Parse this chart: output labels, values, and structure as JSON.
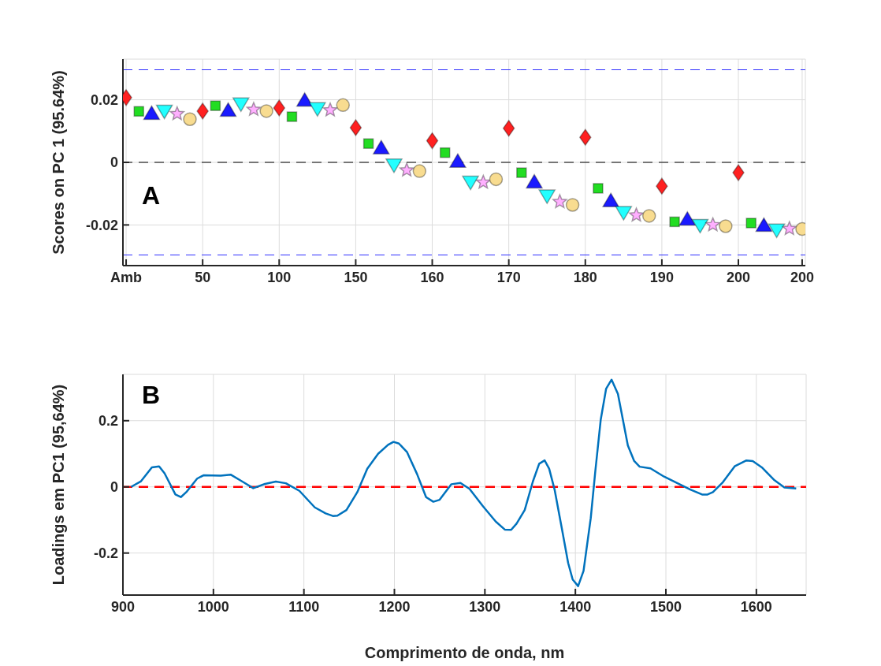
{
  "chart_data": [
    {
      "type": "scatter",
      "ylabel": "Scores on PC 1 (95.64%)",
      "annotations": [
        "A"
      ],
      "categories": [
        "Amb",
        null,
        null,
        null,
        null,
        null,
        "50",
        null,
        null,
        null,
        null,
        null,
        "100",
        null,
        null,
        null,
        null,
        null,
        "150",
        null,
        null,
        null,
        null,
        null,
        "160",
        null,
        null,
        null,
        null,
        null,
        "170",
        null,
        null,
        null,
        null,
        null,
        "180",
        null,
        null,
        null,
        null,
        null,
        "190",
        null,
        null,
        null,
        null,
        null,
        "200",
        null,
        null,
        null,
        null,
        "200"
      ],
      "ylim": [
        -0.033,
        0.033
      ],
      "yticks": [
        -0.02,
        0,
        0.02
      ],
      "grid": true,
      "ref_lines": [
        {
          "axis": "y",
          "value": 0,
          "color": "#000000",
          "line_style": "dashed"
        },
        {
          "axis": "y",
          "value": 0.0296,
          "color": "#3030ff",
          "line_style": "dashed"
        },
        {
          "axis": "y",
          "value": -0.0296,
          "color": "#3030ff",
          "line_style": "dashed"
        }
      ],
      "series": [
        {
          "color": "#ff2020",
          "marker": "diamond",
          "values": [
            0.0207,
            null,
            null,
            null,
            null,
            null,
            0.0164,
            null,
            null,
            null,
            null,
            null,
            0.0174,
            null,
            null,
            null,
            null,
            null,
            0.0111,
            null,
            null,
            null,
            null,
            null,
            0.0069,
            null,
            null,
            null,
            null,
            null,
            0.0109,
            null,
            null,
            null,
            null,
            null,
            0.008,
            null,
            null,
            null,
            null,
            null,
            -0.0076,
            null,
            null,
            null,
            null,
            null,
            -0.0033,
            null,
            null,
            null,
            null,
            null
          ]
        },
        {
          "color": "#22dd22",
          "marker": "square",
          "values": [
            null,
            0.0163,
            null,
            null,
            null,
            null,
            null,
            0.0181,
            null,
            null,
            null,
            null,
            null,
            0.0146,
            null,
            null,
            null,
            null,
            null,
            0.006,
            null,
            null,
            null,
            null,
            null,
            0.0031,
            null,
            null,
            null,
            null,
            null,
            -0.0033,
            null,
            null,
            null,
            null,
            null,
            -0.0083,
            null,
            null,
            null,
            null,
            null,
            -0.019,
            null,
            null,
            null,
            null,
            null,
            -0.0194,
            null,
            null,
            null,
            null
          ]
        },
        {
          "color": "#1a1aff",
          "marker": "triangle",
          "values": [
            null,
            null,
            0.0155,
            null,
            null,
            null,
            null,
            null,
            0.0165,
            null,
            null,
            null,
            null,
            null,
            0.0197,
            null,
            null,
            null,
            null,
            null,
            0.0045,
            null,
            null,
            null,
            null,
            null,
            0.0002,
            null,
            null,
            null,
            null,
            null,
            -0.0064,
            null,
            null,
            null,
            null,
            null,
            -0.0124,
            null,
            null,
            null,
            null,
            null,
            -0.0183,
            null,
            null,
            null,
            null,
            null,
            -0.0203,
            null,
            null,
            null
          ]
        },
        {
          "color": "#22ffff",
          "marker": "triangle-down",
          "values": [
            null,
            null,
            null,
            0.0165,
            null,
            null,
            null,
            null,
            null,
            0.0188,
            null,
            null,
            null,
            null,
            null,
            0.0173,
            null,
            null,
            null,
            null,
            null,
            -0.0007,
            null,
            null,
            null,
            null,
            null,
            -0.0062,
            null,
            null,
            null,
            null,
            null,
            -0.0106,
            null,
            null,
            null,
            null,
            null,
            -0.0159,
            null,
            null,
            null,
            null,
            null,
            -0.02,
            null,
            null,
            null,
            null,
            null,
            -0.0215,
            null,
            null
          ]
        },
        {
          "color": "#ffb0ff",
          "marker": "star",
          "values": [
            null,
            null,
            null,
            null,
            0.0155,
            null,
            null,
            null,
            null,
            null,
            0.0169,
            null,
            null,
            null,
            null,
            null,
            0.0167,
            null,
            null,
            null,
            null,
            null,
            -0.0025,
            null,
            null,
            null,
            null,
            null,
            -0.0064,
            null,
            null,
            null,
            null,
            null,
            -0.0126,
            null,
            null,
            null,
            null,
            null,
            -0.0169,
            null,
            null,
            null,
            null,
            null,
            -0.02,
            null,
            null,
            null,
            null,
            null,
            -0.0212,
            null
          ]
        },
        {
          "color": "#f8dc90",
          "marker": "circle",
          "values": [
            null,
            null,
            null,
            null,
            null,
            0.0138,
            null,
            null,
            null,
            null,
            null,
            0.0164,
            null,
            null,
            null,
            null,
            null,
            0.0183,
            null,
            null,
            null,
            null,
            null,
            -0.0028,
            null,
            null,
            null,
            null,
            null,
            -0.0054,
            null,
            null,
            null,
            null,
            null,
            -0.0136,
            null,
            null,
            null,
            null,
            null,
            -0.0171,
            null,
            null,
            null,
            null,
            null,
            -0.0204,
            null,
            null,
            null,
            null,
            null,
            -0.0213
          ]
        }
      ]
    },
    {
      "type": "line",
      "xlabel": "Comprimento de onda, nm",
      "ylabel": "Loadings em PC1 (95,64%)",
      "annotations": [
        "B"
      ],
      "xlim": [
        900,
        1655
      ],
      "xticks": [
        900,
        1000,
        1100,
        1200,
        1300,
        1400,
        1500,
        1600
      ],
      "ylim": [
        -0.327,
        0.34
      ],
      "yticks": [
        -0.2,
        0,
        0.2
      ],
      "grid": true,
      "ref_lines": [
        {
          "axis": "y",
          "value": 0,
          "color": "#ff0000",
          "line_style": "dashed"
        }
      ],
      "series": [
        {
          "color": "#0072bd",
          "x": [
            909,
            920,
            932,
            940,
            946,
            958,
            964,
            970,
            982,
            989,
            1008,
            1019,
            1032,
            1044,
            1057,
            1069,
            1080,
            1095,
            1112,
            1124,
            1132,
            1137,
            1147,
            1159,
            1170,
            1182,
            1193,
            1199,
            1205,
            1214,
            1225,
            1235,
            1243,
            1250,
            1263,
            1273,
            1283,
            1298,
            1312,
            1322,
            1329,
            1335,
            1344,
            1353,
            1360,
            1366,
            1371,
            1377,
            1385,
            1392,
            1397,
            1403,
            1409,
            1417,
            1422,
            1428,
            1434,
            1440,
            1447,
            1458,
            1465,
            1471,
            1483,
            1498,
            1512,
            1527,
            1540,
            1546,
            1552,
            1563,
            1576,
            1589,
            1596,
            1606,
            1620,
            1631,
            1644
          ],
          "values": [
            0,
            0.017,
            0.059,
            0.062,
            0.041,
            -0.023,
            -0.031,
            -0.016,
            0.025,
            0.035,
            0.034,
            0.037,
            0.016,
            -0.004,
            0.009,
            0.016,
            0.011,
            -0.012,
            -0.062,
            -0.08,
            -0.088,
            -0.087,
            -0.07,
            -0.016,
            0.055,
            0.1,
            0.127,
            0.136,
            0.131,
            0.105,
            0.039,
            -0.031,
            -0.045,
            -0.039,
            0.008,
            0.012,
            -0.006,
            -0.059,
            -0.105,
            -0.129,
            -0.13,
            -0.111,
            -0.07,
            0.016,
            0.07,
            0.08,
            0.055,
            -0.008,
            -0.125,
            -0.23,
            -0.28,
            -0.3,
            -0.254,
            -0.094,
            0.047,
            0.203,
            0.297,
            0.324,
            0.281,
            0.125,
            0.078,
            0.061,
            0.056,
            0.031,
            0.012,
            -0.008,
            -0.023,
            -0.023,
            -0.016,
            0.014,
            0.062,
            0.08,
            0.078,
            0.059,
            0.02,
            -0.002,
            -0.005
          ]
        }
      ]
    }
  ]
}
